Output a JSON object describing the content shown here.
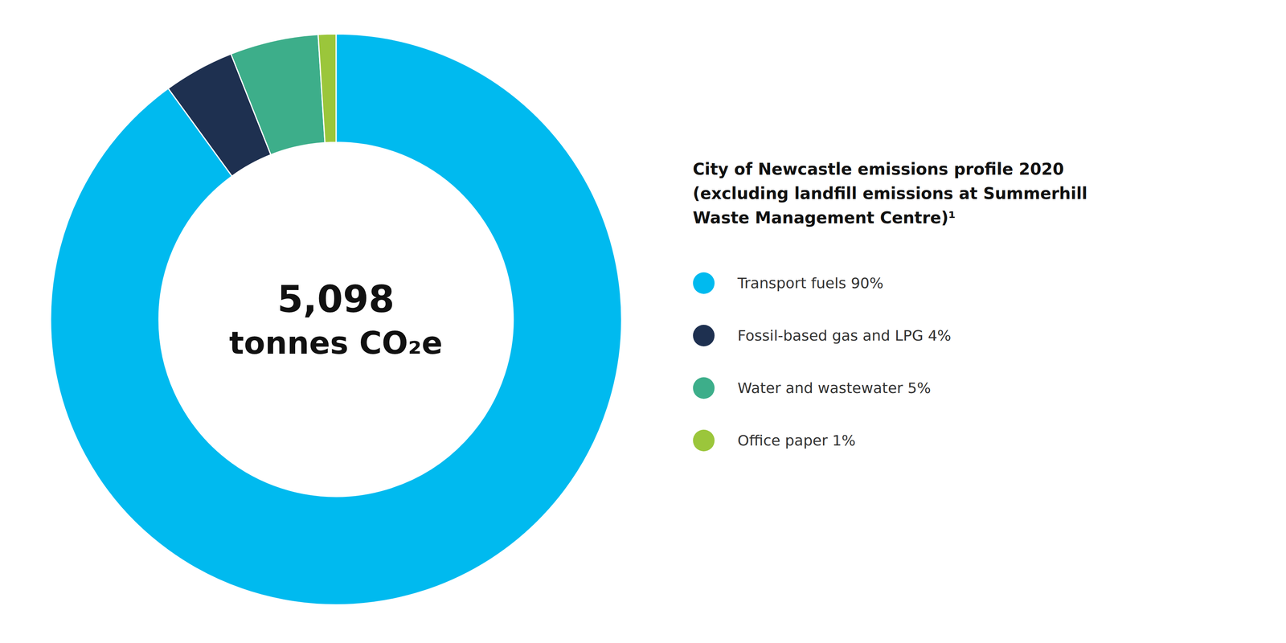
{
  "chart_data": {
    "type": "pie",
    "title": [
      "City of Newcastle emissions profile 2020",
      "(excluding landfill emissions at Summerhill",
      "Waste Management Centre)¹"
    ],
    "annotations": [
      "5,098",
      "tonnes CO₂e"
    ],
    "categories": [
      "Transport fuels 90%",
      "Fossil-based gas and LPG 4%",
      "Water and wastewater 5%",
      "Office paper 1%"
    ],
    "values": [
      90,
      4,
      5,
      1
    ],
    "colors": [
      "#00BAEF",
      "#1E3050",
      "#3DAE8A",
      "#9BC63B"
    ],
    "legend": "right"
  }
}
